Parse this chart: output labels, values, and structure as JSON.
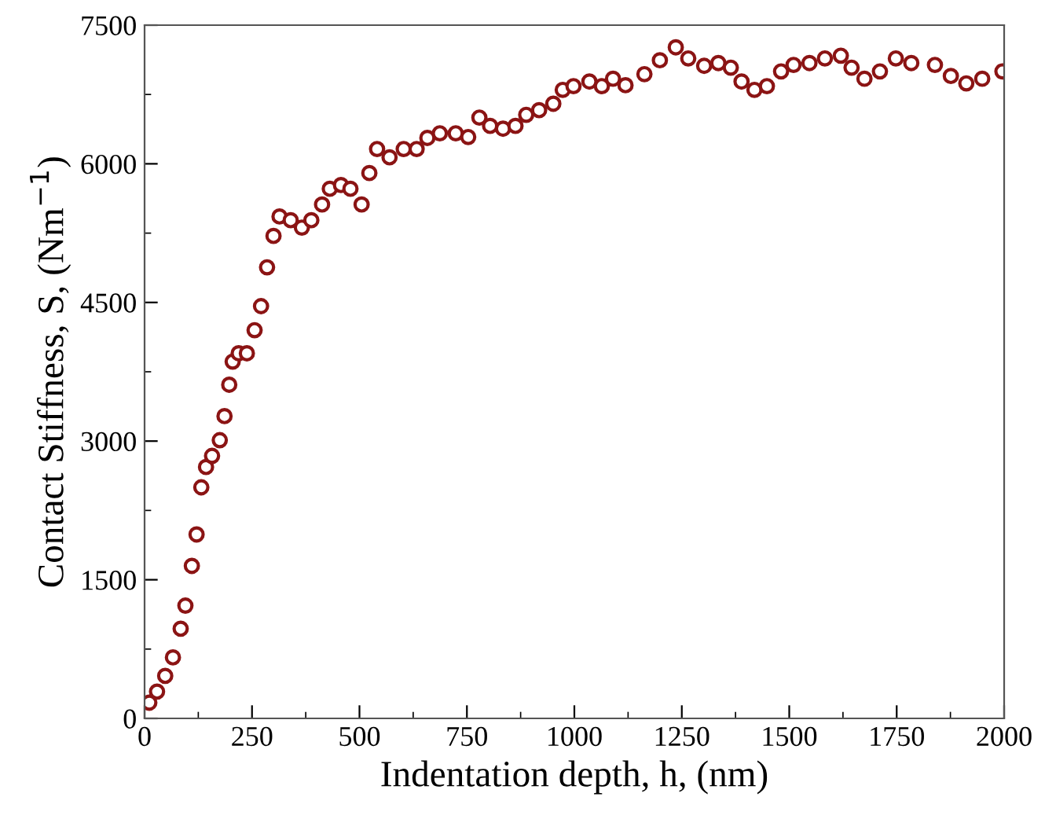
{
  "chart_data": {
    "type": "scatter",
    "xlabel": "Indentation depth, h, (nm)",
    "ylabel": "Contact Stiffness, S, (Nm$^{−1}$)",
    "xlim": [
      0,
      2000
    ],
    "ylim": [
      0,
      7500
    ],
    "xticks": [
      0,
      250,
      500,
      750,
      1000,
      1250,
      1500,
      1750,
      2000
    ],
    "yticks": [
      0,
      1500,
      3000,
      4500,
      6000,
      7500
    ],
    "marker": "circle",
    "grid": false,
    "legend": false,
    "series": [
      {
        "color": "#8b1414",
        "x": [
          11,
          29,
          48,
          66,
          84,
          95,
          110,
          121,
          132,
          143,
          157,
          175,
          186,
          197,
          205,
          219,
          238,
          256,
          271,
          285,
          300,
          314,
          340,
          366,
          388,
          413,
          431,
          457,
          479,
          505,
          523,
          541,
          570,
          603,
          633,
          658,
          687,
          724,
          753,
          779,
          804,
          834,
          863,
          888,
          918,
          951,
          973,
          998,
          1035,
          1064,
          1090,
          1119,
          1163,
          1199,
          1236,
          1265,
          1302,
          1335,
          1364,
          1389,
          1419,
          1448,
          1481,
          1510,
          1547,
          1583,
          1620,
          1645,
          1675,
          1711,
          1748,
          1784,
          1839,
          1876,
          1912,
          1949,
          1996
        ],
        "values": [
          170,
          290,
          460,
          660,
          970,
          1220,
          1650,
          1990,
          2500,
          2720,
          2840,
          3010,
          3270,
          3610,
          3860,
          3950,
          3950,
          4200,
          4460,
          4880,
          5220,
          5430,
          5390,
          5310,
          5390,
          5560,
          5730,
          5770,
          5730,
          5560,
          5900,
          6160,
          6070,
          6160,
          6160,
          6280,
          6330,
          6330,
          6290,
          6500,
          6410,
          6380,
          6410,
          6530,
          6580,
          6650,
          6800,
          6840,
          6890,
          6840,
          6920,
          6850,
          6970,
          7120,
          7260,
          7140,
          7060,
          7090,
          7040,
          6890,
          6800,
          6840,
          7000,
          7070,
          7090,
          7140,
          7170,
          7040,
          6920,
          7000,
          7140,
          7090,
          7070,
          6950,
          6870,
          6920,
          7000
        ]
      }
    ]
  }
}
